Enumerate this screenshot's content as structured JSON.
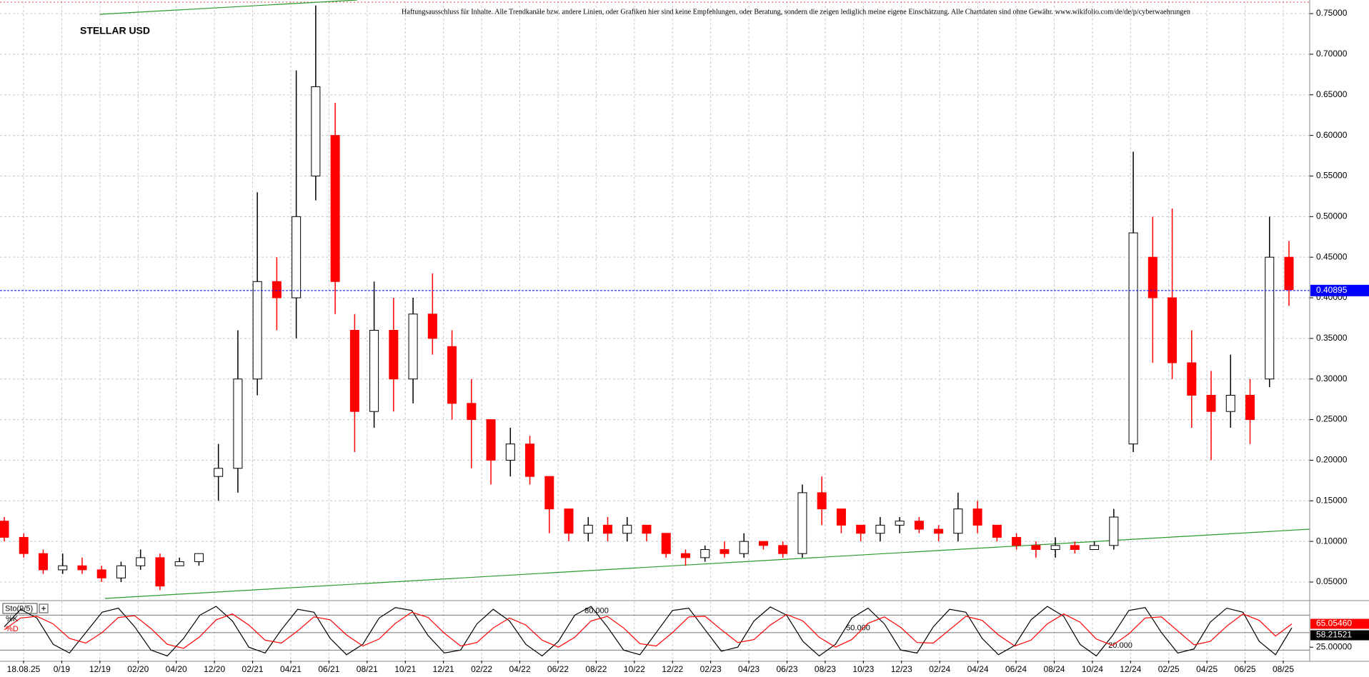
{
  "chart_data": [
    {
      "type": "candlestick",
      "title": "STELLAR USD",
      "annotation": "Haftungsausschluss für Inhalte. Alle Trendkanäle bzw. andere Linien, oder Grafiken hier sind keine Empfehlungen, oder Beratung, sondern die zeigen lediglich meine eigene Einschätzung. Alle Chartdaten sind ohne Gewähr. www.wikifolio.com/de/de/p/cyberwaehrungen",
      "up_color": "#ffffff",
      "down_color": "#ff0000",
      "open": [
        0.125,
        0.105,
        0.085,
        0.065,
        0.07,
        0.065,
        0.055,
        0.07,
        0.08,
        0.07,
        0.075,
        0.18,
        0.19,
        0.3,
        0.42,
        0.4,
        0.55,
        0.6,
        0.36,
        0.26,
        0.36,
        0.3,
        0.38,
        0.34,
        0.27,
        0.25,
        0.2,
        0.22,
        0.18,
        0.14,
        0.11,
        0.12,
        0.11,
        0.12,
        0.11,
        0.085,
        0.08,
        0.09,
        0.085,
        0.1,
        0.095,
        0.085,
        0.16,
        0.14,
        0.12,
        0.11,
        0.12,
        0.125,
        0.115,
        0.11,
        0.14,
        0.12,
        0.105,
        0.095,
        0.09,
        0.095,
        0.09,
        0.095,
        0.22,
        0.45,
        0.4,
        0.32,
        0.28,
        0.26,
        0.28,
        0.3,
        0.45
      ],
      "high": [
        0.13,
        0.11,
        0.09,
        0.085,
        0.08,
        0.07,
        0.075,
        0.09,
        0.085,
        0.08,
        0.085,
        0.22,
        0.36,
        0.53,
        0.45,
        0.68,
        0.76,
        0.64,
        0.38,
        0.42,
        0.4,
        0.4,
        0.43,
        0.36,
        0.3,
        0.25,
        0.24,
        0.23,
        0.18,
        0.14,
        0.13,
        0.13,
        0.13,
        0.12,
        0.11,
        0.09,
        0.095,
        0.1,
        0.11,
        0.1,
        0.1,
        0.17,
        0.18,
        0.14,
        0.12,
        0.13,
        0.13,
        0.13,
        0.12,
        0.16,
        0.15,
        0.12,
        0.11,
        0.1,
        0.105,
        0.1,
        0.1,
        0.14,
        0.58,
        0.5,
        0.51,
        0.36,
        0.31,
        0.33,
        0.3,
        0.5,
        0.47
      ],
      "low": [
        0.1,
        0.08,
        0.06,
        0.06,
        0.06,
        0.05,
        0.05,
        0.065,
        0.04,
        0.07,
        0.07,
        0.15,
        0.16,
        0.28,
        0.36,
        0.35,
        0.52,
        0.38,
        0.21,
        0.24,
        0.26,
        0.27,
        0.33,
        0.25,
        0.19,
        0.17,
        0.18,
        0.17,
        0.11,
        0.1,
        0.1,
        0.1,
        0.1,
        0.1,
        0.08,
        0.07,
        0.075,
        0.08,
        0.08,
        0.09,
        0.08,
        0.08,
        0.12,
        0.11,
        0.1,
        0.1,
        0.11,
        0.11,
        0.1,
        0.1,
        0.11,
        0.1,
        0.09,
        0.08,
        0.08,
        0.085,
        0.09,
        0.09,
        0.21,
        0.32,
        0.3,
        0.24,
        0.2,
        0.24,
        0.22,
        0.29,
        0.39
      ],
      "close": [
        0.105,
        0.085,
        0.065,
        0.07,
        0.065,
        0.055,
        0.07,
        0.08,
        0.045,
        0.075,
        0.085,
        0.19,
        0.3,
        0.42,
        0.4,
        0.5,
        0.66,
        0.42,
        0.26,
        0.36,
        0.3,
        0.38,
        0.35,
        0.27,
        0.25,
        0.2,
        0.22,
        0.18,
        0.14,
        0.11,
        0.12,
        0.11,
        0.12,
        0.11,
        0.085,
        0.08,
        0.09,
        0.085,
        0.1,
        0.095,
        0.085,
        0.16,
        0.14,
        0.12,
        0.11,
        0.12,
        0.125,
        0.115,
        0.11,
        0.14,
        0.12,
        0.105,
        0.095,
        0.09,
        0.095,
        0.09,
        0.095,
        0.13,
        0.48,
        0.4,
        0.32,
        0.28,
        0.26,
        0.28,
        0.25,
        0.45,
        0.41
      ],
      "xtick_labels": [
        "18.08.25",
        "0/19",
        "12/19",
        "02/20",
        "04/20",
        "12/20",
        "02/21",
        "04/21",
        "06/21",
        "08/21",
        "10/21",
        "12/21",
        "02/22",
        "04/22",
        "06/22",
        "08/22",
        "10/22",
        "12/22",
        "02/23",
        "04/23",
        "06/23",
        "08/23",
        "10/23",
        "12/23",
        "02/24",
        "04/24",
        "06/24",
        "08/24",
        "10/24",
        "12/24",
        "02/25",
        "04/25",
        "06/25",
        "08/25"
      ],
      "ylim": [
        0.028,
        0.765
      ],
      "yticks": [
        {
          "value": 0.05,
          "label": "0.05000"
        },
        {
          "value": 0.1,
          "label": "0.10000"
        },
        {
          "value": 0.15,
          "label": "0.15000"
        },
        {
          "value": 0.2,
          "label": "0.20000"
        },
        {
          "value": 0.25,
          "label": "0.25000"
        },
        {
          "value": 0.3,
          "label": "0.30000"
        },
        {
          "value": 0.35,
          "label": "0.35000"
        },
        {
          "value": 0.4,
          "label": "0.40000"
        },
        {
          "value": 0.45,
          "label": "0.45000"
        },
        {
          "value": 0.5,
          "label": "0.50000"
        },
        {
          "value": 0.55,
          "label": "0.55000"
        },
        {
          "value": 0.6,
          "label": "0.60000"
        },
        {
          "value": 0.65,
          "label": "0.65000"
        },
        {
          "value": 0.7,
          "label": "0.70000"
        },
        {
          "value": 0.75,
          "label": "0.75000"
        }
      ],
      "last_price": 0.40895,
      "grid": true
    },
    {
      "type": "line",
      "title": "Sto(9/5)",
      "ylim": [
        2,
        102.5
      ],
      "levels": [
        {
          "value": 80,
          "label": "80.000"
        },
        {
          "value": 50,
          "label": "50.000"
        },
        {
          "value": 20,
          "label": "20.000"
        }
      ],
      "yticks": [
        {
          "value": 25,
          "label": "25.00000"
        }
      ],
      "series": [
        {
          "name": "%K",
          "color": "#000000",
          "last_label": "58.21521",
          "values": [
            60,
            90,
            75,
            30,
            15,
            50,
            85,
            92,
            60,
            20,
            10,
            40,
            80,
            95,
            70,
            25,
            15,
            55,
            90,
            85,
            40,
            12,
            30,
            75,
            93,
            88,
            45,
            15,
            20,
            65,
            90,
            70,
            30,
            10,
            35,
            80,
            95,
            60,
            20,
            12,
            50,
            88,
            92,
            55,
            18,
            25,
            70,
            94,
            80,
            35,
            10,
            30,
            75,
            92,
            65,
            20,
            15,
            60,
            90,
            85,
            40,
            12,
            28,
            72,
            95,
            78,
            30,
            10,
            45,
            88,
            93,
            50,
            15,
            22,
            68,
            92,
            85,
            35,
            12,
            58.21521
          ]
        },
        {
          "name": "%D",
          "color": "#ff0000",
          "last_label": "65.05460",
          "values": [
            55,
            75,
            78,
            65,
            40,
            32,
            50,
            76,
            79,
            57,
            30,
            23,
            43,
            72,
            82,
            63,
            37,
            32,
            53,
            77,
            72,
            46,
            27,
            39,
            66,
            85,
            76,
            49,
            27,
            33,
            58,
            75,
            63,
            37,
            25,
            42,
            70,
            78,
            58,
            31,
            27,
            50,
            77,
            78,
            55,
            33,
            38,
            63,
            81,
            70,
            42,
            25,
            38,
            66,
            77,
            59,
            33,
            32,
            55,
            78,
            71,
            46,
            27,
            37,
            65,
            82,
            68,
            39,
            28,
            48,
            75,
            77,
            53,
            29,
            35,
            61,
            82,
            71,
            44,
            65.0546
          ]
        }
      ]
    }
  ]
}
